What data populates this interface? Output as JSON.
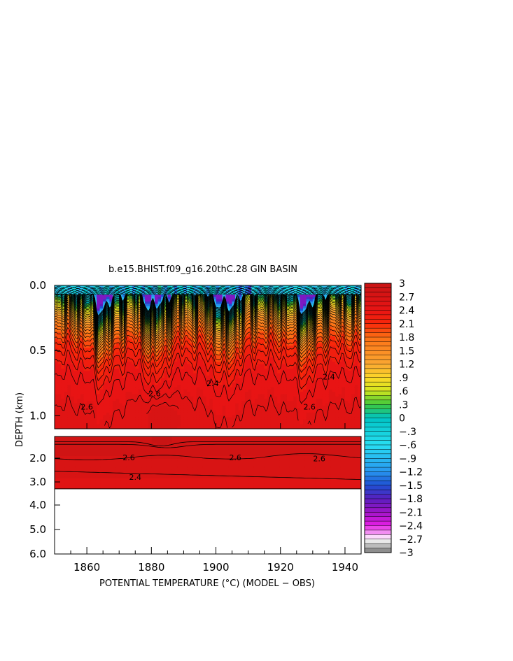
{
  "chart_data": {
    "type": "heatmap",
    "title": "b.e15.BHIST.f09_g16.20thC.28 GIN BASIN",
    "xlabel": "POTENTIAL TEMPERATURE (°C) (MODEL − OBS)",
    "ylabel": "DEPTH (km)",
    "xlim": [
      1850,
      1945
    ],
    "x_ticks": [
      1860,
      1880,
      1900,
      1920,
      1940
    ],
    "x_tick_labels": [
      "1860",
      "1880",
      "1900",
      "1920",
      "1940"
    ],
    "upper_panel": {
      "ylim": [
        0.0,
        1.1
      ],
      "y_ticks": [
        0.0,
        0.5,
        1.0
      ],
      "y_tick_labels": [
        "0.0",
        "0.5",
        "1.0"
      ]
    },
    "lower_panel": {
      "ylim": [
        1.5,
        6.0
      ],
      "y_ticks": [
        2.0,
        3.0,
        4.0,
        5.0,
        6.0
      ],
      "y_tick_labels": [
        "2.0",
        "3.0",
        "4.0",
        "5.0",
        "6.0"
      ],
      "data_bottom_depth": 3.3
    },
    "colorbar": {
      "range": [
        -3,
        3
      ],
      "tick_values": [
        3,
        2.7,
        2.4,
        2.1,
        1.8,
        1.5,
        1.2,
        0.9,
        0.6,
        0.3,
        0,
        -0.3,
        -0.6,
        -0.9,
        -1.2,
        -1.5,
        -1.8,
        -2.1,
        -2.4,
        -2.7,
        -3
      ],
      "tick_labels": [
        "3",
        "2.7",
        "2.4",
        "2.1",
        "1.8",
        "1.5",
        "1.2",
        ".9",
        ".6",
        ".3",
        "0",
        "−.3",
        "−.6",
        "−.9",
        "−1.2",
        "−1.5",
        "−1.8",
        "−2.1",
        "−2.4",
        "−2.7",
        "−3"
      ]
    },
    "contour_labels": [
      {
        "text": "2.6",
        "x": 1860,
        "y": 0.93
      },
      {
        "text": "2.6",
        "x": 1881,
        "y": 0.83
      },
      {
        "text": "2.4",
        "x": 1899,
        "y": 0.75
      },
      {
        "text": "2.6",
        "x": 1929,
        "y": 0.93
      },
      {
        "text": "2.4",
        "x": 1935,
        "y": 0.7
      },
      {
        "text": "2.6",
        "x": 1873,
        "y": 1.98
      },
      {
        "text": "2.6",
        "x": 1906,
        "y": 1.98
      },
      {
        "text": "2.6",
        "x": 1932,
        "y": 2.02
      },
      {
        "text": "2.4",
        "x": 1875,
        "y": 2.8
      }
    ]
  }
}
